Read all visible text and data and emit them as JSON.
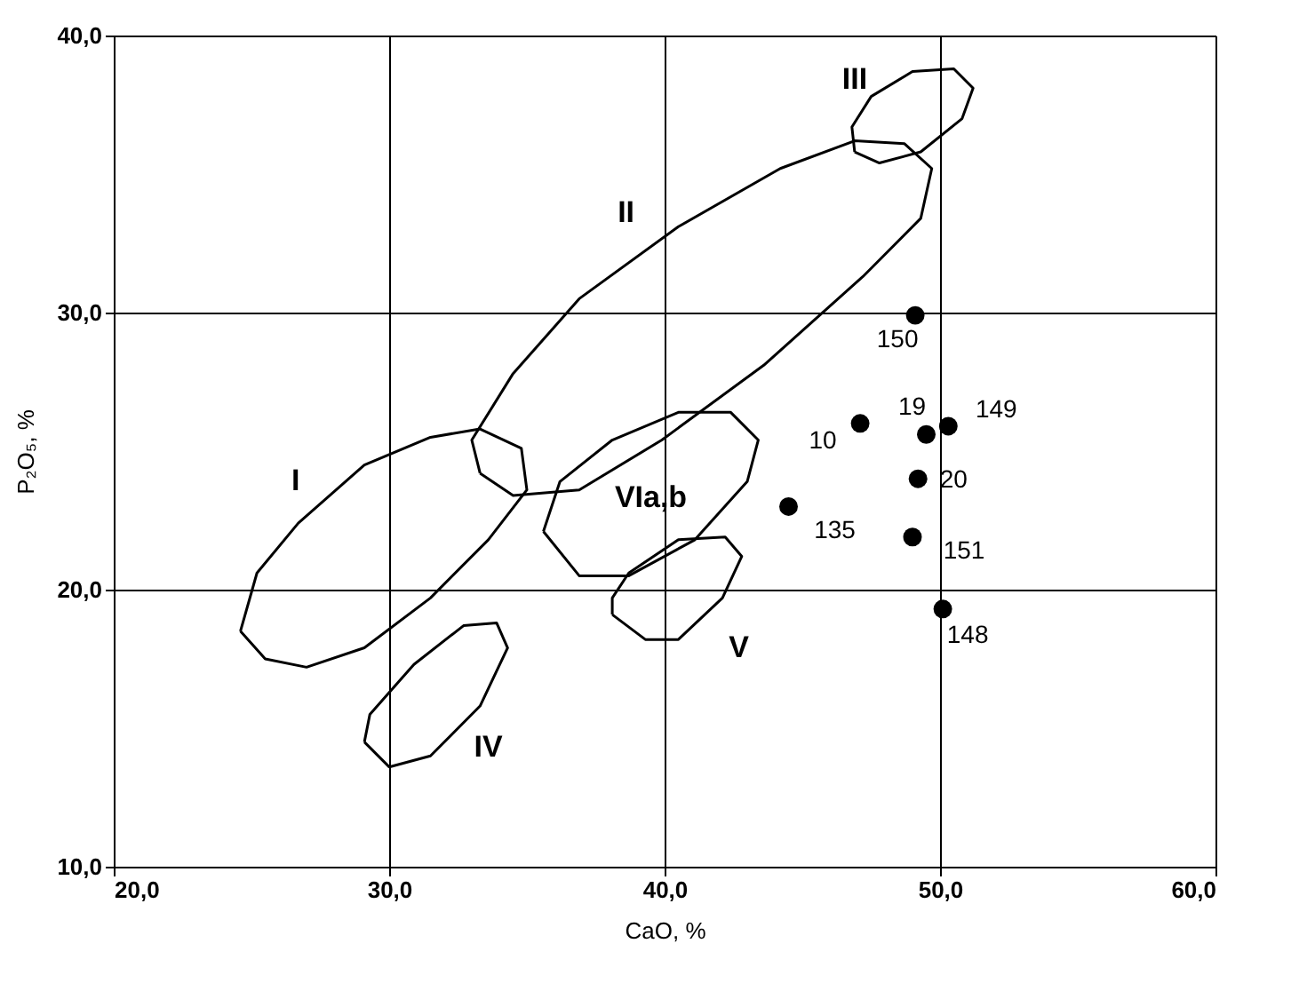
{
  "chart_data": {
    "type": "scatter",
    "xlabel": "CaO, %",
    "ylabel": "P₂O₅, %",
    "xlim": [
      20,
      60
    ],
    "ylim": [
      10,
      40
    ],
    "xticks": [
      {
        "value": 20,
        "label": "20,0"
      },
      {
        "value": 30,
        "label": "30,0"
      },
      {
        "value": 40,
        "label": "40,0"
      },
      {
        "value": 50,
        "label": "50,0"
      },
      {
        "value": 60,
        "label": "60,0"
      }
    ],
    "yticks": [
      {
        "value": 10,
        "label": "10,0"
      },
      {
        "value": 20,
        "label": "20,0"
      },
      {
        "value": 30,
        "label": "30,0"
      },
      {
        "value": 40,
        "label": "40,0"
      }
    ],
    "grid": true,
    "marker": "circle",
    "series": [
      {
        "color": "#000000",
        "x": [
          49.1,
          47.1,
          49.5,
          50.3,
          49.2,
          44.5,
          49.0,
          50.1
        ],
        "values": [
          29.9,
          26.0,
          25.6,
          25.9,
          24.0,
          23.0,
          21.9,
          19.3
        ]
      }
    ],
    "annotations": [
      {
        "text": "150",
        "x": 49.1,
        "y": 29.9
      },
      {
        "text": "10",
        "x": 47.1,
        "y": 26.0
      },
      {
        "text": "19",
        "x": 49.5,
        "y": 25.6
      },
      {
        "text": "149",
        "x": 50.3,
        "y": 25.9
      },
      {
        "text": "20",
        "x": 49.2,
        "y": 24.0
      },
      {
        "text": "135",
        "x": 44.5,
        "y": 23.0
      },
      {
        "text": "151",
        "x": 49.0,
        "y": 21.9
      },
      {
        "text": "148",
        "x": 50.1,
        "y": 19.3
      },
      "I",
      "II",
      "III",
      "VIa,b",
      "V",
      "IV"
    ]
  }
}
